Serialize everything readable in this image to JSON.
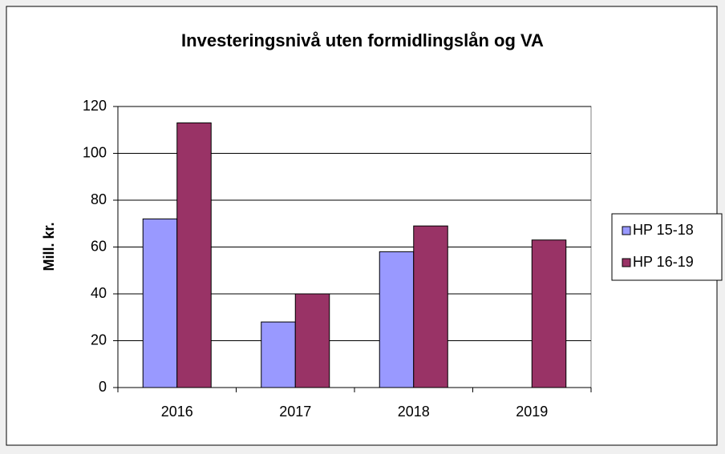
{
  "chart_data": {
    "type": "bar",
    "title": "Investeringsnivå uten formidlingslån og VA",
    "y_label": "Mill. kr.",
    "categories": [
      "2016",
      "2017",
      "2018",
      "2019"
    ],
    "series": [
      {
        "name": "HP 15-18",
        "color": "#9999ff",
        "values": [
          72,
          28,
          58,
          null
        ]
      },
      {
        "name": "HP 16-19",
        "color": "#993366",
        "values": [
          113,
          40,
          69,
          63
        ]
      }
    ],
    "ylim": [
      0,
      120
    ],
    "yticks": [
      0,
      20,
      40,
      60,
      80,
      100,
      120
    ],
    "grid": true,
    "legend": "right"
  }
}
